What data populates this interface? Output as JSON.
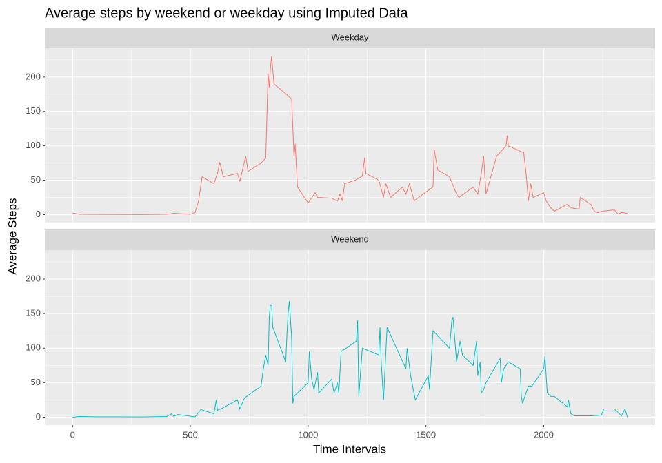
{
  "chart_data": {
    "type": "line",
    "title": "Average steps by weekend or weekday using Imputed Data",
    "x_label": "Time Intervals",
    "y_label": "Average Steps",
    "xlim": [
      -117.75,
      2472.75
    ],
    "xticks": [
      0,
      500,
      1000,
      1500,
      2000
    ],
    "ylim": [
      -11.5,
      241.9
    ],
    "yticks": [
      0,
      50,
      100,
      150,
      200
    ],
    "grid": true,
    "series": [
      {
        "name": "Weekday",
        "color": "#F8766D",
        "x": [
          0,
          30,
          100,
          200,
          300,
          400,
          430,
          500,
          520,
          535,
          550,
          600,
          615,
          625,
          640,
          700,
          710,
          735,
          745,
          800,
          820,
          830,
          835,
          840,
          845,
          850,
          855,
          900,
          930,
          940,
          945,
          955,
          1000,
          1030,
          1040,
          1100,
          1110,
          1125,
          1135,
          1145,
          1155,
          1200,
          1230,
          1240,
          1245,
          1300,
          1320,
          1330,
          1350,
          1400,
          1415,
          1430,
          1450,
          1500,
          1530,
          1535,
          1550,
          1600,
          1630,
          1640,
          1700,
          1720,
          1735,
          1745,
          1755,
          1800,
          1840,
          1845,
          1850,
          1915,
          1925,
          1935,
          1945,
          1955,
          2000,
          2010,
          2030,
          2045,
          2100,
          2115,
          2150,
          2155,
          2200,
          2215,
          2230,
          2250,
          2300,
          2315,
          2330,
          2355
        ],
        "values": [
          2.3,
          0.5,
          0.4,
          0.3,
          0.2,
          0.5,
          2,
          0.5,
          3,
          20,
          55,
          45,
          60,
          76,
          55,
          60,
          48,
          85,
          63,
          75,
          82,
          205,
          185,
          214,
          230,
          210,
          190,
          177,
          168,
          85,
          103,
          40,
          17,
          32,
          25,
          24,
          22,
          20,
          30,
          20,
          45,
          50,
          56,
          83,
          60,
          50,
          25,
          45,
          25,
          40,
          30,
          45,
          20,
          33,
          40,
          95,
          65,
          55,
          30,
          25,
          40,
          30,
          60,
          85,
          30,
          85,
          100,
          115,
          100,
          90,
          60,
          20,
          45,
          25,
          32,
          20,
          10,
          5,
          15,
          10,
          8,
          25,
          15,
          5,
          3,
          5,
          7,
          1,
          3,
          2
        ]
      },
      {
        "name": "Weekend",
        "color": "#00BFC4",
        "x": [
          0,
          30,
          100,
          200,
          300,
          400,
          420,
          430,
          445,
          500,
          520,
          545,
          600,
          610,
          615,
          630,
          700,
          710,
          730,
          800,
          810,
          820,
          830,
          835,
          840,
          845,
          850,
          905,
          910,
          915,
          920,
          930,
          935,
          940,
          1000,
          1005,
          1015,
          1025,
          1040,
          1045,
          1100,
          1110,
          1125,
          1130,
          1140,
          1205,
          1210,
          1215,
          1230,
          1300,
          1305,
          1310,
          1320,
          1335,
          1415,
          1420,
          1435,
          1455,
          1510,
          1515,
          1530,
          1600,
          1610,
          1615,
          1630,
          1645,
          1655,
          1700,
          1715,
          1720,
          1730,
          1735,
          1745,
          1755,
          1815,
          1820,
          1830,
          1850,
          1900,
          1905,
          1910,
          1935,
          1950,
          2000,
          2005,
          2015,
          2030,
          2045,
          2100,
          2105,
          2115,
          2130,
          2200,
          2245,
          2255,
          2300,
          2330,
          2345,
          2355
        ],
        "values": [
          0,
          1,
          0.5,
          0.5,
          0.3,
          1,
          5,
          1,
          4,
          1.5,
          0.5,
          11,
          5,
          25,
          10,
          12,
          25,
          12,
          28,
          45,
          70,
          90,
          75,
          145,
          163,
          162,
          130,
          80,
          120,
          150,
          168,
          115,
          20,
          30,
          50,
          95,
          55,
          40,
          65,
          35,
          55,
          35,
          50,
          35,
          95,
          110,
          140,
          30,
          100,
          90,
          130,
          80,
          25,
          130,
          70,
          100,
          60,
          25,
          60,
          40,
          125,
          100,
          140,
          145,
          80,
          110,
          90,
          75,
          110,
          60,
          80,
          35,
          40,
          50,
          85,
          50,
          70,
          80,
          70,
          30,
          20,
          45,
          45,
          70,
          88,
          35,
          30,
          30,
          15,
          25,
          5,
          2,
          2,
          3,
          12,
          12,
          2,
          12,
          0
        ]
      }
    ]
  }
}
